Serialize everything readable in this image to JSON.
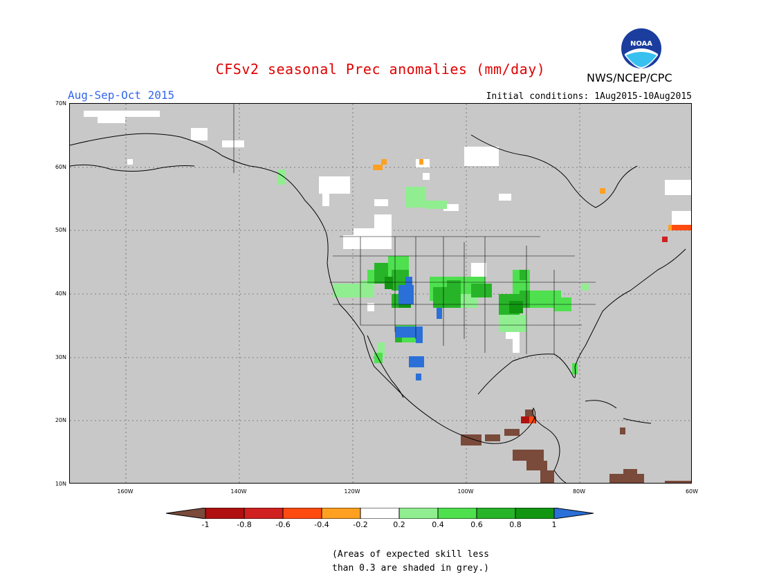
{
  "header": {
    "title": "CFSv2 seasonal Prec anomalies (mm/day)",
    "period": "Aug-Sep-Oct 2015",
    "initial_conditions": "Initial conditions: 1Aug2015-10Aug2015",
    "organization": "NWS/NCEP/CPC",
    "logo_text": "NOAA"
  },
  "map": {
    "lat_labels": [
      "70N",
      "60N",
      "50N",
      "40N",
      "30N",
      "20N",
      "10N"
    ],
    "lon_labels": [
      "160W",
      "140W",
      "120W",
      "100W",
      "80W",
      "60W"
    ],
    "background_color": "#c8c8c8"
  },
  "legend": {
    "levels": [
      "-1",
      "-0.8",
      "-0.6",
      "-0.4",
      "-0.2",
      "0.2",
      "0.4",
      "0.6",
      "0.8",
      "1"
    ],
    "colors": [
      "#7a4a3a",
      "#b01010",
      "#d02020",
      "#ff4b10",
      "#ffa020",
      "#ffffff",
      "#90ee90",
      "#4ee04e",
      "#28b428",
      "#129612",
      "#2a70d8"
    ]
  },
  "note": {
    "line1": "(Areas of expected skill less",
    "line2": "than 0.3 are shaded in grey.)"
  }
}
